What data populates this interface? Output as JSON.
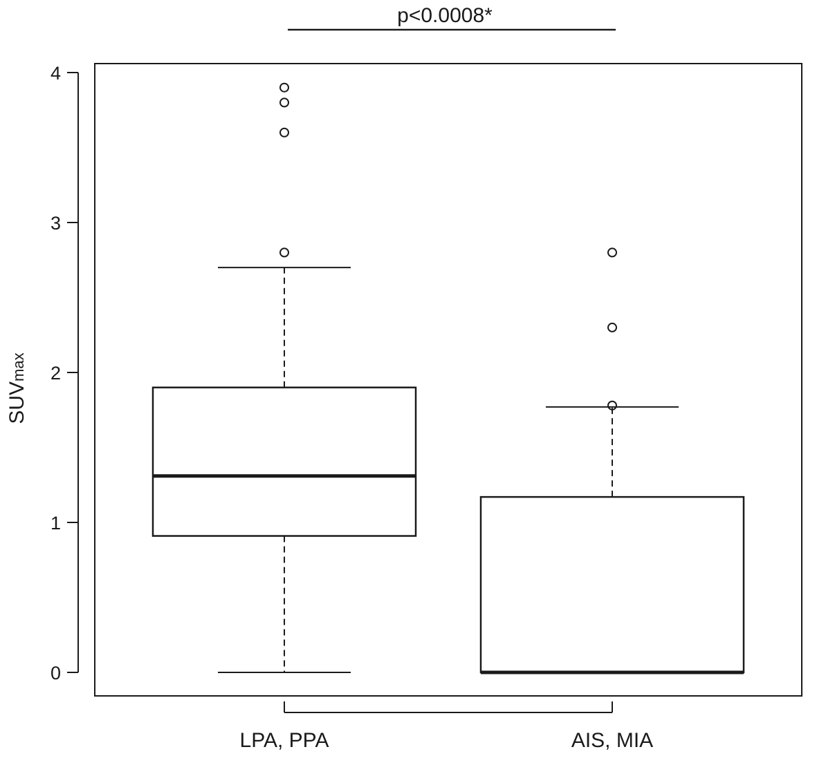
{
  "chart_data": {
    "type": "box",
    "title": "",
    "xlabel": "",
    "ylabel": "SUVmax",
    "ylabel_main": "SUV",
    "ylabel_sub": "max",
    "ylim": [
      0,
      4
    ],
    "yticks": [
      "0",
      "1",
      "2",
      "3",
      "4"
    ],
    "categories": [
      "LPA, PPA",
      "AIS, MIA"
    ],
    "boxes": [
      {
        "category": "LPA, PPA",
        "whisker_low": 0.0,
        "q1": 0.91,
        "median": 1.31,
        "q3": 1.9,
        "whisker_high": 2.7,
        "outliers": [
          2.8,
          3.6,
          3.8,
          3.9
        ]
      },
      {
        "category": "AIS, MIA",
        "whisker_low": 0.0,
        "q1": 0.0,
        "median": 0.0,
        "q3": 1.17,
        "whisker_high": 1.77,
        "outliers": [
          1.78,
          2.3,
          2.8
        ]
      }
    ],
    "annotation": "p<0.0008*",
    "grid": false,
    "colors": {
      "line": "#1a1a1a",
      "background": "#ffffff",
      "box_fill": "#ffffff"
    }
  }
}
